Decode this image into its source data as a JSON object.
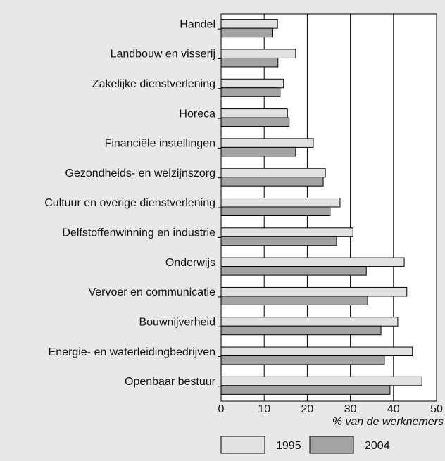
{
  "chart_data": {
    "type": "hbar",
    "xlabel": "% van de werknemers",
    "categories": [
      "Handel",
      "Landbouw en visserij",
      "Zakelijke dienstverlening",
      "Horeca",
      "Financiële instellingen",
      "Gezondheids- en welzijnszorg",
      "Cultuur en overige dienstverlening",
      "Delfstoffenwinning en industrie",
      "Onderwijs",
      "Vervoer en communicatie",
      "Bouwnijverheid",
      "Energie- en waterleidingbedrijven",
      "Openbaar bestuur"
    ],
    "series": [
      {
        "name": "1995",
        "color": "#e2e2e2",
        "values": [
          13.1,
          17.3,
          14.5,
          15.4,
          21.4,
          24.2,
          27.6,
          30.6,
          42.5,
          43.1,
          41,
          44.4,
          46.6
        ]
      },
      {
        "name": "2004",
        "color": "#a3a3a3",
        "values": [
          12,
          13.2,
          13.7,
          15.8,
          17.3,
          23.7,
          25.3,
          26.8,
          33.7,
          34,
          37.1,
          37.9,
          39.2
        ]
      }
    ],
    "xlim": [
      0,
      50
    ],
    "xticks": [
      0,
      10,
      20,
      30,
      40,
      50
    ],
    "grid": true
  }
}
